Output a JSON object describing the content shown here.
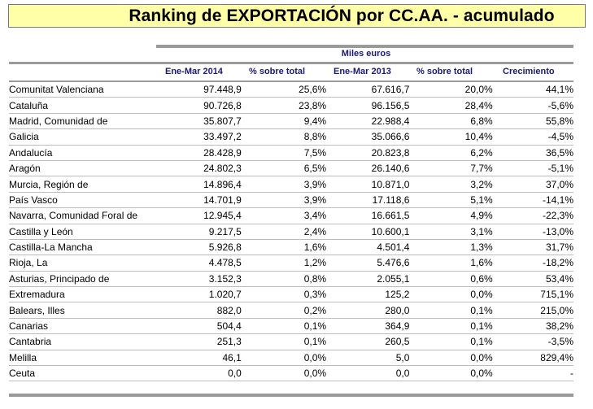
{
  "title": "Ranking de EXPORTACIÓN por CC.AA. - acumulado",
  "units_label": "Miles euros",
  "columns": {
    "period_2014": "Ene-Mar 2014",
    "share_2014": "% sobre total",
    "period_2013": "Ene-Mar 2013",
    "share_2013": "% sobre total",
    "growth": "Crecimiento"
  },
  "rows": [
    {
      "region": "Comunitat Valenciana",
      "v2014": "97.448,9",
      "p2014": "25,6%",
      "v2013": "67.616,7",
      "p2013": "20,0%",
      "growth": "44,1%"
    },
    {
      "region": "Cataluña",
      "v2014": "90.726,8",
      "p2014": "23,8%",
      "v2013": "96.156,5",
      "p2013": "28,4%",
      "growth": "-5,6%"
    },
    {
      "region": "Madrid, Comunidad de",
      "v2014": "35.807,7",
      "p2014": "9,4%",
      "v2013": "22.988,4",
      "p2013": "6,8%",
      "growth": "55,8%"
    },
    {
      "region": "Galicia",
      "v2014": "33.497,2",
      "p2014": "8,8%",
      "v2013": "35.066,6",
      "p2013": "10,4%",
      "growth": "-4,5%"
    },
    {
      "region": "Andalucía",
      "v2014": "28.428,9",
      "p2014": "7,5%",
      "v2013": "20.823,8",
      "p2013": "6,2%",
      "growth": "36,5%"
    },
    {
      "region": "Aragón",
      "v2014": "24.802,3",
      "p2014": "6,5%",
      "v2013": "26.140,6",
      "p2013": "7,7%",
      "growth": "-5,1%"
    },
    {
      "region": "Murcia, Región de",
      "v2014": "14.896,4",
      "p2014": "3,9%",
      "v2013": "10.871,0",
      "p2013": "3,2%",
      "growth": "37,0%"
    },
    {
      "region": "País Vasco",
      "v2014": "14.701,9",
      "p2014": "3,9%",
      "v2013": "17.118,6",
      "p2013": "5,1%",
      "growth": "-14,1%"
    },
    {
      "region": "Navarra, Comunidad Foral de",
      "v2014": "12.945,4",
      "p2014": "3,4%",
      "v2013": "16.661,5",
      "p2013": "4,9%",
      "growth": "-22,3%"
    },
    {
      "region": "Castilla y León",
      "v2014": "9.217,5",
      "p2014": "2,4%",
      "v2013": "10.600,1",
      "p2013": "3,1%",
      "growth": "-13,0%"
    },
    {
      "region": "Castilla-La Mancha",
      "v2014": "5.926,8",
      "p2014": "1,6%",
      "v2013": "4.501,4",
      "p2013": "1,3%",
      "growth": "31,7%"
    },
    {
      "region": "Rioja, La",
      "v2014": "4.478,5",
      "p2014": "1,2%",
      "v2013": "5.476,6",
      "p2013": "1,6%",
      "growth": "-18,2%"
    },
    {
      "region": "Asturias, Principado de",
      "v2014": "3.152,3",
      "p2014": "0,8%",
      "v2013": "2.055,1",
      "p2013": "0,6%",
      "growth": "53,4%"
    },
    {
      "region": "Extremadura",
      "v2014": "1.020,7",
      "p2014": "0,3%",
      "v2013": "125,2",
      "p2013": "0,0%",
      "growth": "715,1%"
    },
    {
      "region": "Balears, Illes",
      "v2014": "882,0",
      "p2014": "0,2%",
      "v2013": "280,0",
      "p2013": "0,1%",
      "growth": "215,0%"
    },
    {
      "region": "Canarias",
      "v2014": "504,4",
      "p2014": "0,1%",
      "v2013": "364,9",
      "p2013": "0,1%",
      "growth": "38,2%"
    },
    {
      "region": "Cantabria",
      "v2014": "251,3",
      "p2014": "0,1%",
      "v2013": "260,5",
      "p2013": "0,1%",
      "growth": "-3,5%"
    },
    {
      "region": "Melilla",
      "v2014": "46,1",
      "p2014": "0,0%",
      "v2013": "5,0",
      "p2013": "0,0%",
      "growth": "829,4%"
    },
    {
      "region": "Ceuta",
      "v2014": "0,0",
      "p2014": "0,0%",
      "v2013": "0,0",
      "p2013": "0,0%",
      "growth": "-"
    }
  ],
  "colors": {
    "title_background": "#ffffa8",
    "header_text": "#1a1a7a",
    "rule": "#9a9a9a"
  }
}
